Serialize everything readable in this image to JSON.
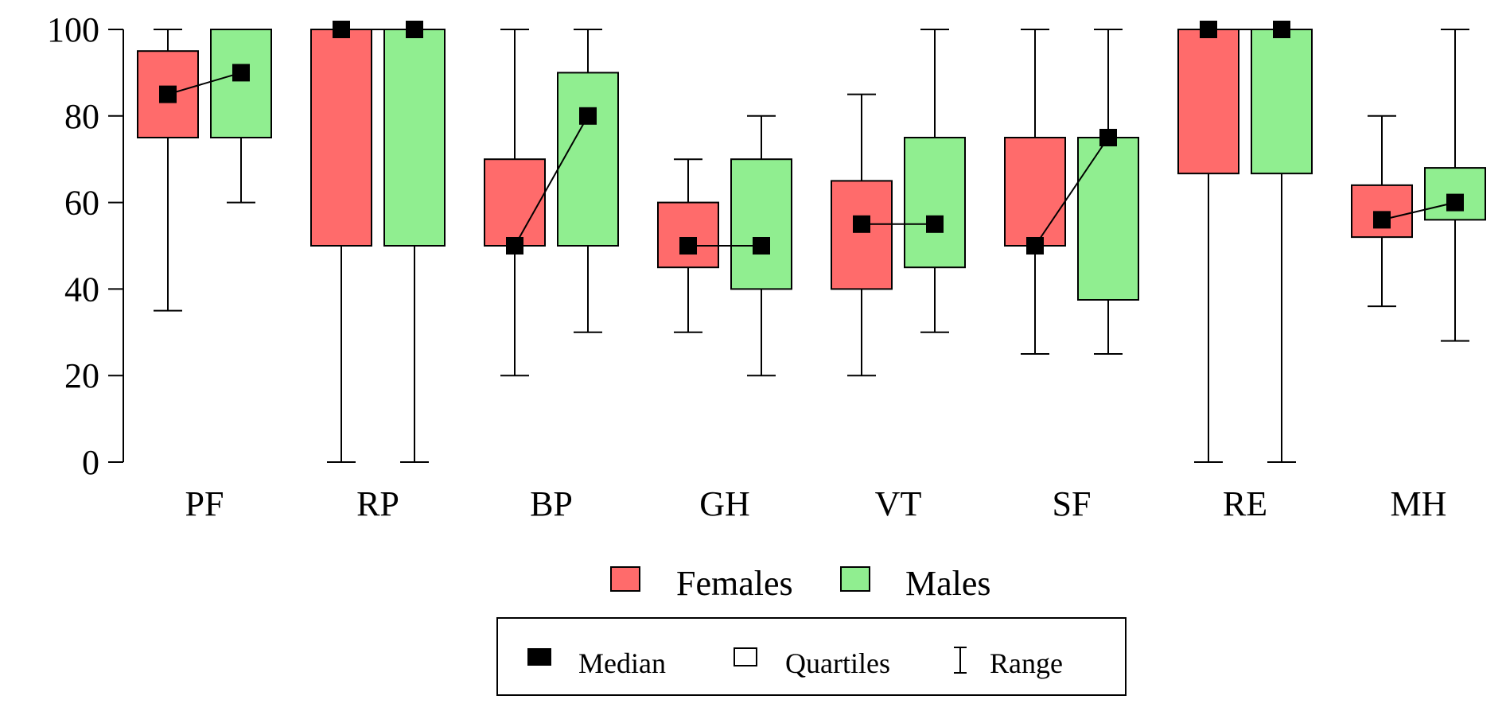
{
  "chart_data": {
    "type": "boxplot",
    "categories": [
      "PF",
      "RP",
      "BP",
      "GH",
      "VT",
      "SF",
      "RE",
      "MH"
    ],
    "ylim": [
      0,
      100
    ],
    "yticks": [
      "0",
      "20",
      "40",
      "60",
      "80",
      "100"
    ],
    "grid": false,
    "legend_placement": "bottom-center",
    "series": [
      {
        "name": "Females",
        "color": "#ff6b6b",
        "boxes": [
          {
            "min": 35,
            "q1": 75,
            "median": 85,
            "q3": 95,
            "max": 100
          },
          {
            "min": 0,
            "q1": 50,
            "median": 100,
            "q3": 100,
            "max": 100
          },
          {
            "min": 20,
            "q1": 50,
            "median": 50,
            "q3": 70,
            "max": 100
          },
          {
            "min": 30,
            "q1": 45,
            "median": 50,
            "q3": 60,
            "max": 70
          },
          {
            "min": 20,
            "q1": 40,
            "median": 55,
            "q3": 65,
            "max": 85
          },
          {
            "min": 25,
            "q1": 50,
            "median": 50,
            "q3": 75,
            "max": 100
          },
          {
            "min": 0,
            "q1": 66.7,
            "median": 100,
            "q3": 100,
            "max": 100
          },
          {
            "min": 36,
            "q1": 52,
            "median": 56,
            "q3": 64,
            "max": 80
          }
        ]
      },
      {
        "name": "Males",
        "color": "#90ee90",
        "boxes": [
          {
            "min": 60,
            "q1": 75,
            "median": 90,
            "q3": 100,
            "max": 100
          },
          {
            "min": 0,
            "q1": 50,
            "median": 100,
            "q3": 100,
            "max": 100
          },
          {
            "min": 30,
            "q1": 50,
            "median": 80,
            "q3": 90,
            "max": 100
          },
          {
            "min": 20,
            "q1": 40,
            "median": 50,
            "q3": 70,
            "max": 80
          },
          {
            "min": 30,
            "q1": 45,
            "median": 55,
            "q3": 75,
            "max": 100
          },
          {
            "min": 25,
            "q1": 37.5,
            "median": 75,
            "q3": 75,
            "max": 100
          },
          {
            "min": 0,
            "q1": 66.7,
            "median": 100,
            "q3": 100,
            "max": 100
          },
          {
            "min": 28,
            "q1": 56,
            "median": 60,
            "q3": 68,
            "max": 100
          }
        ]
      }
    ],
    "legend": {
      "series_labels": [
        "Females",
        "Males"
      ],
      "key_labels": [
        "Median",
        "Quartiles",
        "Range"
      ]
    }
  }
}
